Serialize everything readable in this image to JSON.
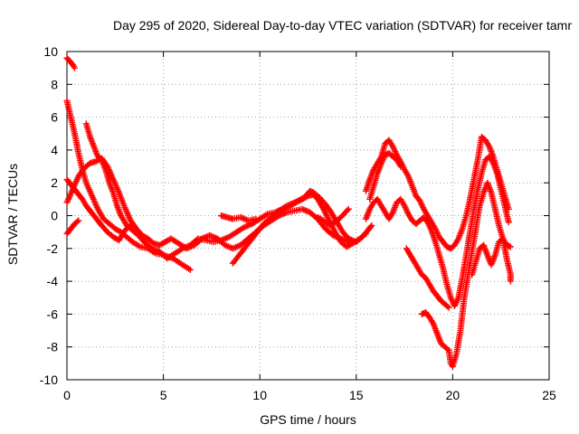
{
  "chart_data": {
    "type": "scatter",
    "title": "Day 295 of 2020, Sidereal Day-to-day VTEC variation (SDTVAR) for receiver tamr",
    "xlabel": "GPS time / hours",
    "ylabel": "SDTVAR / TECUs",
    "xlim": [
      0,
      25
    ],
    "ylim": [
      -10,
      10
    ],
    "xticks": [
      0,
      5,
      10,
      15,
      20,
      25
    ],
    "yticks": [
      -10,
      -8,
      -6,
      -4,
      -2,
      0,
      2,
      4,
      6,
      8,
      10
    ],
    "xtick_labels": [
      "0",
      "5",
      "10",
      "15",
      "20",
      "25"
    ],
    "ytick_labels": [
      "-10",
      "-8",
      "-6",
      "-4",
      "-2",
      "0",
      "2",
      "4",
      "6",
      "8",
      "10"
    ],
    "grid": true,
    "marker": "+",
    "color": "#ff0000",
    "series": [
      {
        "name": "arc-a",
        "points": [
          [
            0.0,
            9.6
          ],
          [
            0.15,
            9.4
          ],
          [
            0.3,
            9.2
          ],
          [
            0.4,
            9.0
          ]
        ]
      },
      {
        "name": "arc-b",
        "points": [
          [
            0.0,
            7.0
          ],
          [
            0.2,
            6.0
          ],
          [
            0.4,
            5.0
          ],
          [
            0.6,
            3.8
          ],
          [
            0.8,
            2.8
          ],
          [
            1.0,
            2.0
          ],
          [
            1.3,
            1.2
          ],
          [
            1.6,
            0.4
          ],
          [
            1.9,
            -0.2
          ],
          [
            2.2,
            -0.5
          ],
          [
            2.5,
            -0.8
          ],
          [
            2.8,
            -1.0
          ],
          [
            3.1,
            -1.3
          ],
          [
            3.4,
            -1.6
          ],
          [
            3.8,
            -1.9
          ],
          [
            4.2,
            -2.0
          ],
          [
            4.6,
            -2.3
          ],
          [
            5.0,
            -2.4
          ],
          [
            5.5,
            -2.6
          ],
          [
            6.0,
            -3.0
          ],
          [
            6.4,
            -3.3
          ]
        ]
      },
      {
        "name": "arc-c",
        "points": [
          [
            1.0,
            5.6
          ],
          [
            1.2,
            4.8
          ],
          [
            1.4,
            4.2
          ],
          [
            1.6,
            3.6
          ],
          [
            1.8,
            3.4
          ],
          [
            2.0,
            2.8
          ],
          [
            2.2,
            2.0
          ],
          [
            2.4,
            1.4
          ],
          [
            2.6,
            0.6
          ],
          [
            2.8,
            0.0
          ],
          [
            3.1,
            -0.6
          ],
          [
            3.4,
            -0.9
          ],
          [
            3.7,
            -1.2
          ],
          [
            4.0,
            -1.6
          ],
          [
            4.4,
            -2.0
          ],
          [
            4.8,
            -2.2
          ],
          [
            5.2,
            -2.6
          ],
          [
            5.6,
            -2.3
          ],
          [
            6.0,
            -2.0
          ],
          [
            6.4,
            -1.8
          ],
          [
            6.8,
            -1.4
          ],
          [
            7.2,
            -1.5
          ],
          [
            7.6,
            -1.6
          ],
          [
            8.0,
            -1.5
          ],
          [
            8.4,
            -1.3
          ],
          [
            8.8,
            -1.0
          ],
          [
            9.2,
            -0.7
          ],
          [
            9.6,
            -0.5
          ],
          [
            10.0,
            -0.2
          ],
          [
            10.4,
            0.1
          ],
          [
            10.8,
            0.2
          ],
          [
            11.2,
            0.4
          ],
          [
            11.6,
            0.6
          ],
          [
            12.0,
            0.9
          ],
          [
            12.4,
            1.2
          ],
          [
            12.6,
            1.5
          ],
          [
            12.8,
            1.4
          ],
          [
            13.1,
            1.1
          ],
          [
            13.4,
            0.7
          ],
          [
            13.7,
            0.2
          ],
          [
            14.0,
            -0.4
          ],
          [
            14.3,
            -1.0
          ],
          [
            14.6,
            -1.4
          ],
          [
            15.0,
            -1.6
          ],
          [
            15.3,
            -1.3
          ],
          [
            15.6,
            -0.9
          ],
          [
            15.8,
            -0.6
          ]
        ]
      },
      {
        "name": "arc-d",
        "points": [
          [
            0.0,
            0.8
          ],
          [
            0.3,
            1.6
          ],
          [
            0.6,
            2.4
          ],
          [
            0.9,
            2.9
          ],
          [
            1.2,
            3.2
          ],
          [
            1.5,
            3.3
          ],
          [
            1.8,
            3.5
          ],
          [
            2.1,
            3.0
          ],
          [
            2.4,
            2.2
          ],
          [
            2.7,
            1.4
          ],
          [
            3.0,
            0.5
          ],
          [
            3.3,
            -0.3
          ],
          [
            3.6,
            -0.8
          ],
          [
            3.9,
            -1.2
          ],
          [
            4.2,
            -1.4
          ],
          [
            4.5,
            -1.7
          ],
          [
            4.8,
            -1.8
          ],
          [
            5.1,
            -1.6
          ],
          [
            5.4,
            -1.4
          ],
          [
            5.8,
            -1.7
          ],
          [
            6.2,
            -2.0
          ],
          [
            6.6,
            -1.8
          ],
          [
            7.0,
            -1.4
          ],
          [
            7.4,
            -1.2
          ],
          [
            7.8,
            -1.4
          ],
          [
            8.2,
            -1.8
          ],
          [
            8.6,
            -2.0
          ],
          [
            9.0,
            -1.8
          ],
          [
            9.4,
            -1.4
          ],
          [
            9.8,
            -1.0
          ],
          [
            10.2,
            -0.6
          ],
          [
            10.6,
            -0.3
          ],
          [
            11.0,
            0.0
          ],
          [
            11.4,
            0.2
          ],
          [
            11.8,
            0.3
          ],
          [
            12.2,
            0.4
          ],
          [
            12.6,
            0.2
          ],
          [
            13.0,
            -0.2
          ],
          [
            13.4,
            -0.8
          ],
          [
            13.8,
            -1.2
          ],
          [
            14.2,
            -1.4
          ],
          [
            14.6,
            -1.6
          ]
        ]
      },
      {
        "name": "arc-e",
        "points": [
          [
            0.0,
            -1.1
          ],
          [
            0.2,
            -0.8
          ],
          [
            0.4,
            -0.5
          ],
          [
            0.6,
            -0.3
          ]
        ]
      },
      {
        "name": "arc-f",
        "points": [
          [
            0.0,
            2.2
          ],
          [
            0.2,
            1.9
          ],
          [
            0.4,
            1.6
          ],
          [
            0.6,
            1.3
          ],
          [
            0.8,
            1.0
          ],
          [
            1.0,
            0.6
          ],
          [
            1.2,
            0.3
          ],
          [
            1.4,
            0.0
          ],
          [
            1.6,
            -0.3
          ],
          [
            1.8,
            -0.6
          ],
          [
            2.1,
            -1.0
          ],
          [
            2.4,
            -1.3
          ],
          [
            2.7,
            -1.5
          ],
          [
            3.0,
            -0.9
          ],
          [
            3.3,
            -0.6
          ]
        ]
      },
      {
        "name": "arc-g",
        "points": [
          [
            8.6,
            -2.9
          ],
          [
            9.0,
            -2.3
          ],
          [
            9.4,
            -1.7
          ],
          [
            9.8,
            -1.1
          ],
          [
            10.2,
            -0.5
          ],
          [
            10.6,
            -0.1
          ],
          [
            11.0,
            0.3
          ],
          [
            11.4,
            0.6
          ],
          [
            11.8,
            0.8
          ],
          [
            12.2,
            1.0
          ],
          [
            12.5,
            1.2
          ],
          [
            12.8,
            1.3
          ],
          [
            13.0,
            1.0
          ],
          [
            13.3,
            0.4
          ],
          [
            13.6,
            -0.3
          ],
          [
            13.9,
            -1.0
          ],
          [
            14.2,
            -1.6
          ],
          [
            14.5,
            -1.9
          ],
          [
            14.8,
            -1.7
          ],
          [
            15.2,
            -1.4
          ],
          [
            15.5,
            -1.1
          ]
        ]
      },
      {
        "name": "arc-h",
        "points": [
          [
            8.0,
            0.0
          ],
          [
            8.3,
            -0.1
          ],
          [
            8.6,
            -0.2
          ],
          [
            9.0,
            -0.1
          ],
          [
            9.4,
            -0.3
          ],
          [
            9.8,
            -0.2
          ]
        ]
      },
      {
        "name": "arc-i",
        "points": [
          [
            13.0,
            -0.1
          ],
          [
            13.3,
            -0.3
          ],
          [
            13.6,
            -0.6
          ],
          [
            13.9,
            -0.4
          ],
          [
            14.2,
            -0.1
          ],
          [
            14.6,
            0.4
          ]
        ]
      },
      {
        "name": "arc-j",
        "points": [
          [
            15.5,
            1.5
          ],
          [
            15.7,
            2.2
          ],
          [
            15.9,
            2.8
          ],
          [
            16.1,
            3.2
          ],
          [
            16.3,
            3.6
          ],
          [
            16.5,
            4.4
          ],
          [
            16.7,
            4.6
          ],
          [
            16.9,
            4.2
          ],
          [
            17.1,
            3.7
          ],
          [
            17.3,
            3.3
          ],
          [
            17.5,
            2.8
          ],
          [
            17.7,
            2.4
          ],
          [
            17.9,
            1.8
          ],
          [
            18.1,
            1.2
          ],
          [
            18.3,
            0.9
          ],
          [
            18.5,
            0.4
          ],
          [
            18.7,
            0.0
          ],
          [
            18.9,
            -0.4
          ],
          [
            19.1,
            -0.8
          ],
          [
            19.3,
            -1.3
          ],
          [
            19.5,
            -1.6
          ],
          [
            19.7,
            -1.9
          ],
          [
            19.9,
            -2.0
          ],
          [
            20.1,
            -1.8
          ],
          [
            20.3,
            -1.4
          ],
          [
            20.5,
            -0.8
          ],
          [
            20.7,
            0.0
          ],
          [
            20.9,
            1.0
          ],
          [
            21.1,
            2.2
          ],
          [
            21.3,
            3.4
          ],
          [
            21.5,
            4.8
          ],
          [
            21.7,
            4.6
          ],
          [
            21.9,
            4.2
          ],
          [
            22.1,
            3.6
          ],
          [
            22.3,
            2.8
          ],
          [
            22.5,
            2.0
          ],
          [
            22.7,
            1.2
          ],
          [
            22.9,
            0.4
          ]
        ]
      },
      {
        "name": "arc-k",
        "points": [
          [
            15.7,
            1.0
          ],
          [
            15.9,
            1.8
          ],
          [
            16.1,
            2.6
          ],
          [
            16.3,
            3.2
          ],
          [
            16.5,
            3.7
          ],
          [
            16.7,
            3.8
          ],
          [
            16.9,
            3.6
          ],
          [
            17.1,
            3.4
          ],
          [
            17.3,
            3.0
          ]
        ]
      },
      {
        "name": "arc-l",
        "points": [
          [
            15.5,
            -0.2
          ],
          [
            15.7,
            0.4
          ],
          [
            15.9,
            0.8
          ],
          [
            16.1,
            1.0
          ],
          [
            16.3,
            0.6
          ],
          [
            16.5,
            0.2
          ],
          [
            16.7,
            -0.2
          ],
          [
            16.9,
            0.2
          ],
          [
            17.1,
            0.8
          ],
          [
            17.3,
            1.0
          ],
          [
            17.5,
            0.6
          ],
          [
            17.7,
            0.1
          ],
          [
            17.9,
            -0.3
          ],
          [
            18.1,
            -0.5
          ],
          [
            18.3,
            -0.3
          ],
          [
            18.5,
            -0.1
          ],
          [
            18.7,
            -0.4
          ],
          [
            18.9,
            -0.9
          ],
          [
            19.1,
            -1.6
          ],
          [
            19.3,
            -2.4
          ],
          [
            19.5,
            -3.2
          ],
          [
            19.7,
            -4.2
          ],
          [
            19.9,
            -5.0
          ],
          [
            20.1,
            -5.5
          ],
          [
            20.3,
            -5.0
          ],
          [
            20.5,
            -3.8
          ],
          [
            20.7,
            -2.4
          ],
          [
            20.9,
            -1.0
          ],
          [
            21.1,
            0.4
          ],
          [
            21.3,
            1.6
          ],
          [
            21.5,
            2.6
          ],
          [
            21.7,
            3.4
          ],
          [
            21.9,
            3.6
          ],
          [
            22.1,
            3.2
          ],
          [
            22.3,
            2.6
          ],
          [
            22.5,
            1.6
          ],
          [
            22.7,
            0.6
          ],
          [
            22.9,
            -0.4
          ]
        ]
      },
      {
        "name": "arc-m",
        "points": [
          [
            17.6,
            -2.0
          ],
          [
            17.8,
            -2.4
          ],
          [
            18.0,
            -2.8
          ],
          [
            18.2,
            -3.2
          ],
          [
            18.4,
            -3.6
          ],
          [
            18.6,
            -3.8
          ],
          [
            18.8,
            -4.2
          ],
          [
            19.0,
            -4.6
          ],
          [
            19.2,
            -4.9
          ],
          [
            19.4,
            -5.2
          ],
          [
            19.6,
            -5.4
          ],
          [
            19.8,
            -5.6
          ]
        ]
      },
      {
        "name": "arc-n",
        "points": [
          [
            18.4,
            -6.0
          ],
          [
            18.6,
            -5.9
          ],
          [
            18.8,
            -6.2
          ],
          [
            19.0,
            -6.6
          ],
          [
            19.2,
            -7.2
          ],
          [
            19.4,
            -7.8
          ],
          [
            19.6,
            -8.0
          ],
          [
            19.8,
            -8.2
          ],
          [
            19.9,
            -9.0
          ],
          [
            20.0,
            -9.2
          ],
          [
            20.2,
            -8.4
          ],
          [
            20.4,
            -7.0
          ],
          [
            20.6,
            -5.0
          ],
          [
            20.8,
            -3.6
          ],
          [
            21.0,
            -2.2
          ],
          [
            21.2,
            -0.8
          ],
          [
            21.4,
            0.6
          ],
          [
            21.6,
            1.4
          ],
          [
            21.8,
            2.0
          ],
          [
            22.0,
            1.4
          ],
          [
            22.2,
            0.4
          ],
          [
            22.4,
            -0.6
          ],
          [
            22.6,
            -1.4
          ],
          [
            22.8,
            -1.8
          ],
          [
            23.0,
            -1.9
          ]
        ]
      },
      {
        "name": "arc-o",
        "points": [
          [
            21.0,
            -3.6
          ],
          [
            21.2,
            -2.8
          ],
          [
            21.4,
            -2.0
          ],
          [
            21.6,
            -1.8
          ],
          [
            21.8,
            -2.4
          ],
          [
            22.0,
            -3.0
          ],
          [
            22.2,
            -2.4
          ],
          [
            22.4,
            -1.6
          ],
          [
            22.6,
            -1.4
          ],
          [
            22.8,
            -2.6
          ],
          [
            23.0,
            -3.6
          ],
          [
            23.0,
            -4.0
          ]
        ]
      }
    ]
  }
}
